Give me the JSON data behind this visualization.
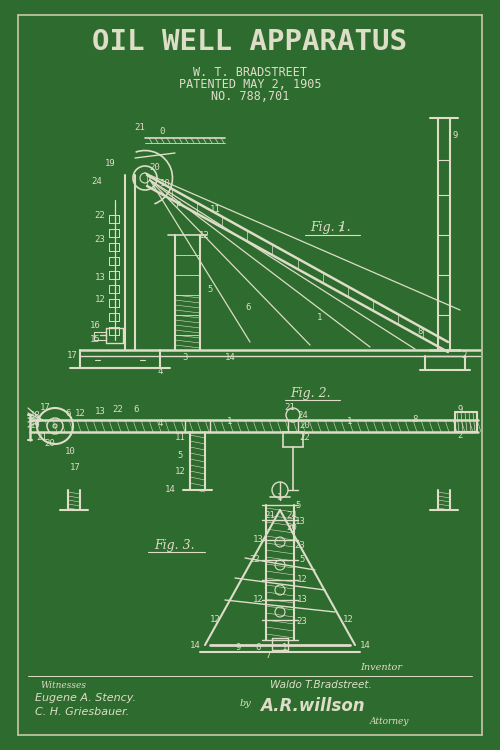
{
  "bg_color": "#2e6b2e",
  "line_color": "#ddddc8",
  "text_color": "#ddddc8",
  "title": "OIL WELL APPARATUS",
  "subtitle1": "W. T. BRADSTREET",
  "subtitle2": "PATENTED MAY 2, 1905",
  "subtitle3": "NO. 788,701",
  "fig_label1": "Fig. 1.",
  "fig_label2": "Fig. 2.",
  "fig_label3": "Fig. 3.",
  "witness_label": "Witnesses",
  "inventor_label": "Inventor",
  "witness1": "Eugene A. Stency.",
  "witness2": "C. H. Griesbauer.",
  "inventor_name": "Waldo T.Bradstreet.",
  "by_text": "by",
  "attorney_sig": "A.R.willson",
  "attorney_label": "Attorney",
  "border_color": "#c8c8a8"
}
